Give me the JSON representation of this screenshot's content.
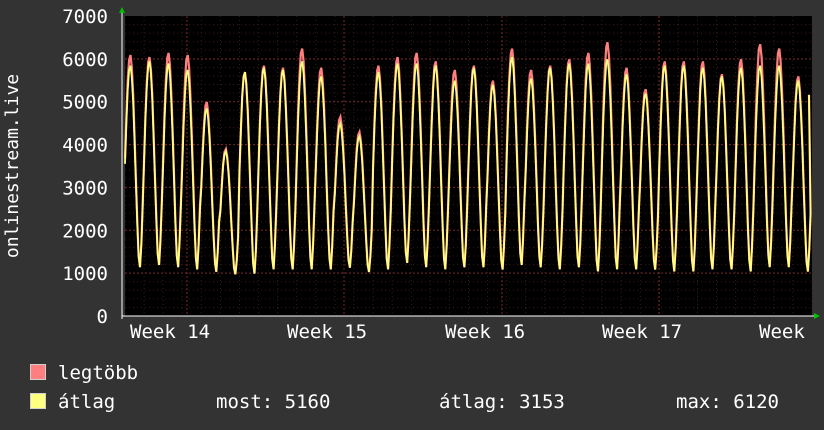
{
  "chart_data": {
    "type": "line",
    "ylabel": "onlinestream.live",
    "ylim": [
      0,
      7000
    ],
    "y_ticks": [
      0,
      1000,
      2000,
      3000,
      4000,
      5000,
      6000,
      7000
    ],
    "x_ticks": [
      "Week 14",
      "Week 15",
      "Week 16",
      "Week 17",
      "Week"
    ],
    "grid": true,
    "colors": {
      "background": "#333333",
      "plot": "#000000",
      "grid": "#5a2020",
      "max_fill": "#ff7f7f",
      "avg_fill": "#ffff80",
      "axis_arrow": "#00c000"
    },
    "day_peaks_max": [
      6100,
      6050,
      6150,
      6100,
      5000,
      3900,
      5700,
      5850,
      5800,
      6250,
      5800,
      4650,
      4300,
      5850,
      6050,
      6150,
      5950,
      5750,
      5850,
      5500,
      6250,
      5750,
      5850,
      6000,
      6150,
      6400,
      5800,
      5300,
      5950,
      5950,
      5950,
      5650,
      6000,
      6350,
      6250,
      5600
    ],
    "day_peaks_avg": [
      5850,
      5950,
      5900,
      5750,
      4850,
      3850,
      5700,
      5800,
      5750,
      5950,
      5600,
      4500,
      4200,
      5700,
      5900,
      5900,
      5850,
      5500,
      5800,
      5400,
      6050,
      5550,
      5800,
      5900,
      5900,
      6000,
      5650,
      5200,
      5850,
      5850,
      5800,
      5600,
      5800,
      5850,
      5850,
      5500
    ],
    "trough_values": [
      1100,
      1150,
      1100,
      1050,
      1000,
      950,
      950,
      1050,
      1050,
      1050,
      1050,
      1100,
      1000,
      1050,
      1200,
      1100,
      1050,
      1100,
      1100,
      1050,
      1150,
      1100,
      1050,
      1100,
      1000,
      1050,
      1050,
      1050,
      1000,
      1000,
      1050,
      1050,
      1000,
      1100,
      1100,
      1000
    ],
    "last_value": 5160,
    "series": [
      {
        "name": "legtöbb"
      },
      {
        "name": "átlag"
      }
    ]
  },
  "legend": {
    "max_label": "legtöbb",
    "avg_label": "átlag",
    "now_label": "most:",
    "now_value": "5160",
    "avg_stat_label": "átlag:",
    "avg_stat_value": "3153",
    "max_stat_label": "max:",
    "max_stat_value": "6120"
  }
}
